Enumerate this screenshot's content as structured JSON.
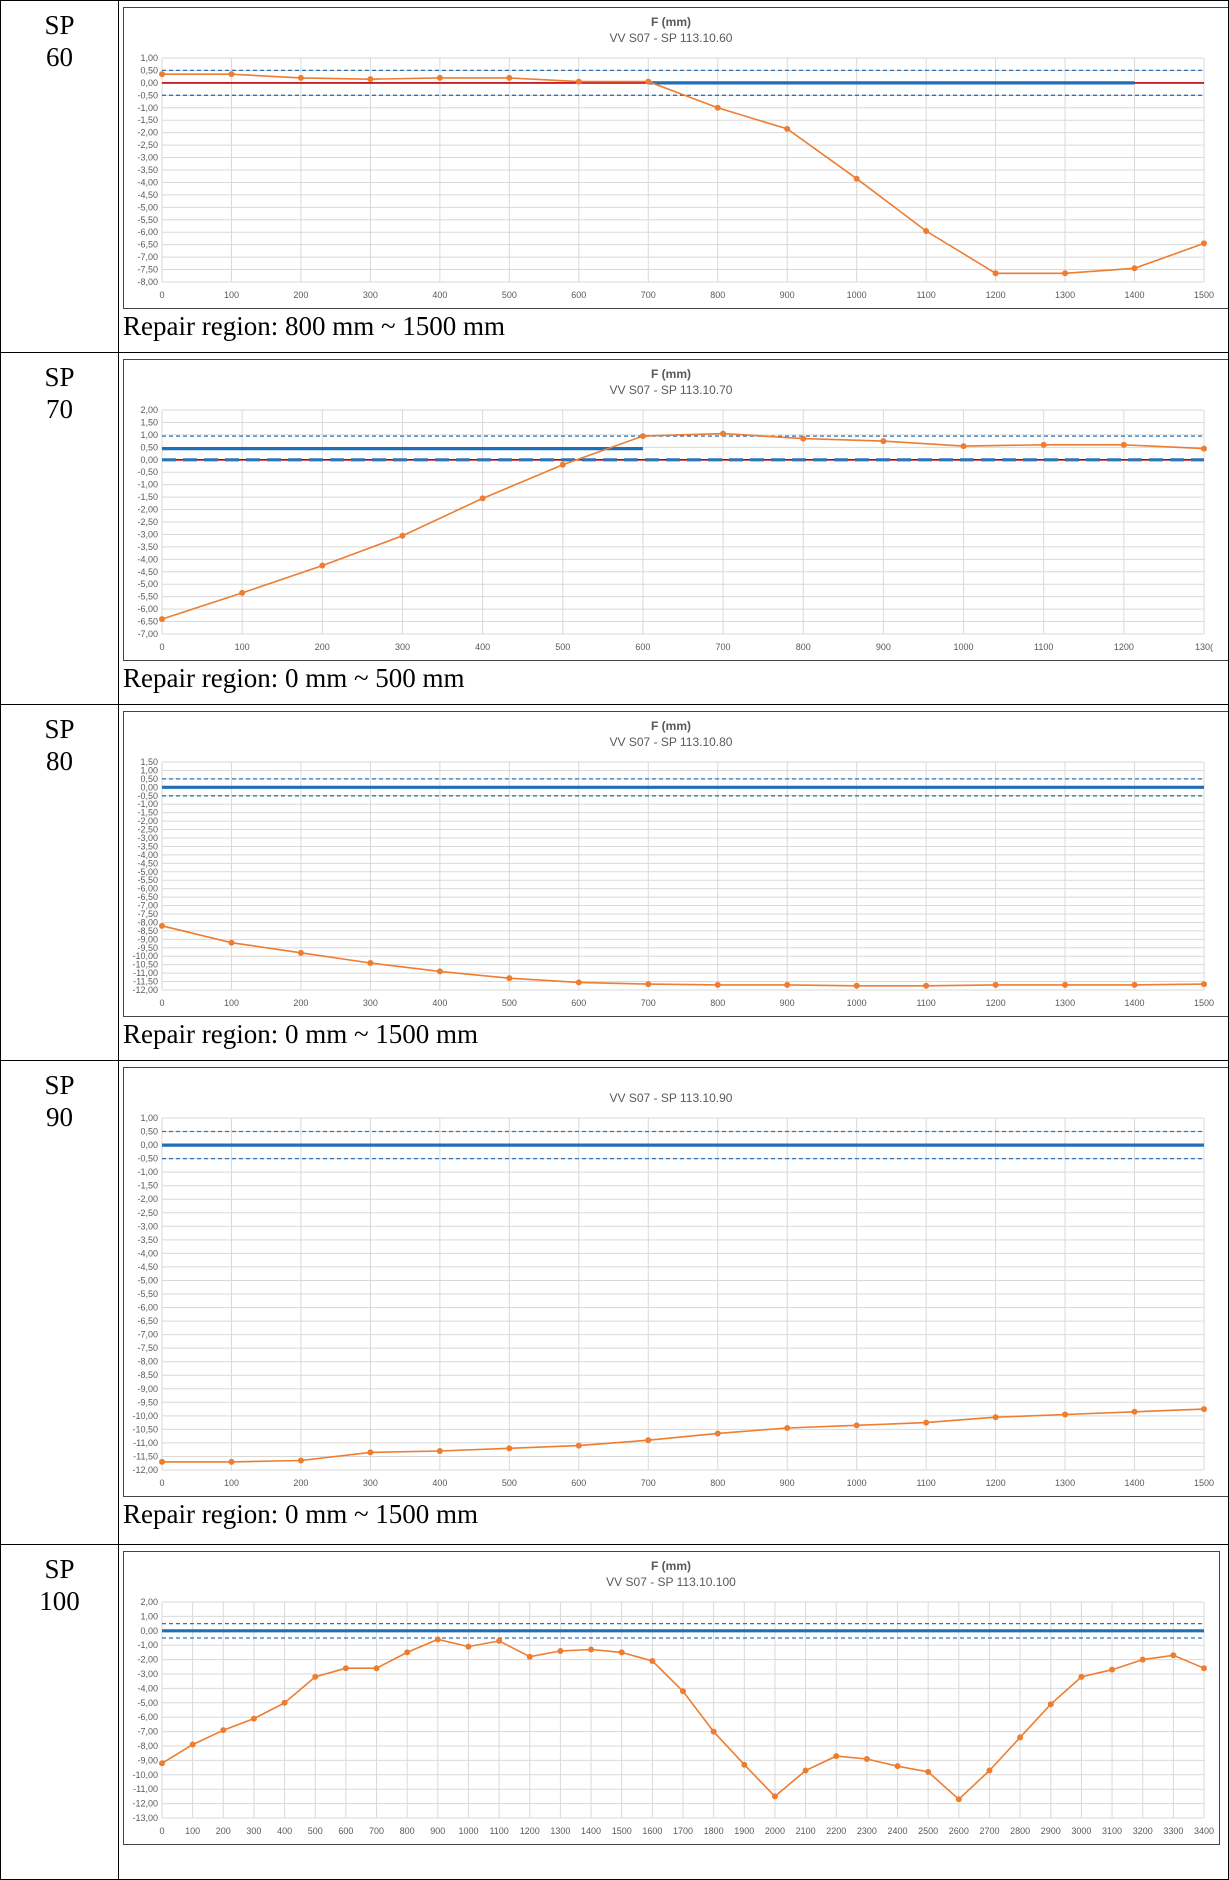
{
  "rows": [
    {
      "label_line1": "SP",
      "label_line2": "60",
      "repair": "Repair region: 800 mm ~ 1500 mm",
      "chart_data": {
        "type": "line",
        "title": "F (mm)",
        "subtitle": "VV S07 - SP 113.10.60",
        "x": [
          0,
          100,
          200,
          300,
          400,
          500,
          600,
          700,
          800,
          900,
          1000,
          1100,
          1200,
          1300,
          1400,
          1500
        ],
        "xticks": [
          "0",
          "100",
          "200",
          "300",
          "400",
          "500",
          "600",
          "700",
          "800",
          "900",
          "1000",
          "1100",
          "1200",
          "1300",
          "1400",
          "1500"
        ],
        "ylim": [
          -8,
          1
        ],
        "ystep": 0.5,
        "series": [
          {
            "values": [
              0.35,
              0.35,
              0.2,
              0.15,
              0.2,
              0.2,
              0.05,
              0.05,
              -1.0,
              -1.85,
              -3.85,
              -5.95,
              -7.65,
              -7.65,
              -7.45,
              -6.45
            ],
            "color": "#ED7D31",
            "style": "marker-line"
          },
          {
            "values": [
              0.5,
              0.5,
              0.5,
              0.5,
              0.5,
              0.5,
              0.5,
              0.5,
              0.5,
              0.5,
              0.5,
              0.5,
              0.5,
              0.5,
              0.5,
              0.5
            ],
            "color": "#2E75B6",
            "style": "dashed"
          },
          {
            "values": [
              -0.5,
              -0.5,
              -0.5,
              -0.5,
              -0.5,
              -0.5,
              -0.5,
              -0.5,
              -0.5,
              -0.5,
              -0.5,
              -0.5,
              -0.5,
              -0.5,
              -0.5,
              -0.5
            ],
            "color": "#2E75B6",
            "style": "dashed"
          },
          {
            "values": [
              0,
              0,
              0,
              0,
              0,
              0,
              0,
              0,
              0,
              0,
              0,
              0,
              0,
              0,
              0,
              0
            ],
            "color": "#C00000",
            "style": "thin"
          },
          {
            "values": [
              null,
              null,
              null,
              null,
              null,
              null,
              null,
              0,
              0,
              0,
              0,
              0,
              0,
              0,
              0,
              null
            ],
            "color": "#1F6FB8",
            "style": "thick"
          }
        ]
      }
    },
    {
      "label_line1": "SP",
      "label_line2": "70",
      "repair": "Repair region: 0 mm ~ 500 mm",
      "chart_data": {
        "type": "line",
        "title": "F (mm)",
        "subtitle": "VV S07 - SP 113.10.70",
        "x": [
          0,
          100,
          200,
          300,
          400,
          500,
          600,
          700,
          800,
          900,
          1000,
          1100,
          1200,
          1300
        ],
        "xticks": [
          "0",
          "100",
          "200",
          "300",
          "400",
          "500",
          "600",
          "700",
          "800",
          "900",
          "1000",
          "1100",
          "1200",
          "130("
        ],
        "ylim": [
          -7,
          2
        ],
        "ystep": 0.5,
        "series": [
          {
            "values": [
              -6.4,
              -5.35,
              -4.25,
              -3.05,
              -1.55,
              -0.2,
              0.95,
              1.05,
              0.85,
              0.75,
              0.55,
              0.6,
              0.6,
              0.45
            ],
            "color": "#ED7D31",
            "style": "marker-line"
          },
          {
            "values": [
              0.95,
              0.95,
              0.95,
              0.95,
              0.95,
              0.95,
              0.95,
              0.95,
              0.95,
              0.95,
              0.95,
              0.95,
              0.95,
              0.95
            ],
            "color": "#2E75B6",
            "style": "dashed"
          },
          {
            "values": [
              0.45,
              0.45,
              0.45,
              0.45,
              0.45,
              0.45,
              0.45,
              null,
              null,
              null,
              null,
              null,
              null,
              null
            ],
            "color": "#1F6FB8",
            "style": "thick"
          },
          {
            "values": [
              0,
              0,
              0,
              0,
              0,
              0,
              0,
              0,
              0,
              0,
              0,
              0,
              0,
              0
            ],
            "color": "#C00000",
            "style": "thin"
          },
          {
            "values": [
              0,
              0,
              0,
              0,
              0,
              0,
              0,
              0,
              0,
              0,
              0,
              0,
              0,
              0
            ],
            "color": "#2E75B6",
            "style": "thick-dashed"
          }
        ]
      }
    },
    {
      "label_line1": "SP",
      "label_line2": "80",
      "repair": "Repair region: 0 mm ~ 1500 mm",
      "chart_data": {
        "type": "line",
        "title": "F (mm)",
        "subtitle": "VV S07 - SP 113.10.80",
        "x": [
          0,
          100,
          200,
          300,
          400,
          500,
          600,
          700,
          800,
          900,
          1000,
          1100,
          1200,
          1300,
          1400,
          1500
        ],
        "xticks": [
          "0",
          "100",
          "200",
          "300",
          "400",
          "500",
          "600",
          "700",
          "800",
          "900",
          "1000",
          "1100",
          "1200",
          "1300",
          "1400",
          "1500"
        ],
        "ylim": [
          -12,
          1.5
        ],
        "ystep": 0.5,
        "series": [
          {
            "values": [
              -8.2,
              -9.2,
              -9.8,
              -10.4,
              -10.9,
              -11.3,
              -11.55,
              -11.65,
              -11.7,
              -11.7,
              -11.75,
              -11.75,
              -11.7,
              -11.7,
              -11.7,
              -11.65
            ],
            "color": "#ED7D31",
            "style": "marker-line"
          },
          {
            "values": [
              0.5,
              0.5,
              0.5,
              0.5,
              0.5,
              0.5,
              0.5,
              0.5,
              0.5,
              0.5,
              0.5,
              0.5,
              0.5,
              0.5,
              0.5,
              0.5
            ],
            "color": "#2E75B6",
            "style": "dashed"
          },
          {
            "values": [
              -0.5,
              -0.5,
              -0.5,
              -0.5,
              -0.5,
              -0.5,
              -0.5,
              -0.5,
              -0.5,
              -0.5,
              -0.5,
              -0.5,
              -0.5,
              -0.5,
              -0.5,
              -0.5
            ],
            "color": "#2E75B6",
            "style": "dashed"
          },
          {
            "values": [
              0,
              0,
              0,
              0,
              0,
              0,
              0,
              0,
              0,
              0,
              0,
              0,
              0,
              0,
              0,
              0
            ],
            "color": "#1F6FB8",
            "style": "thick"
          }
        ]
      }
    },
    {
      "label_line1": "SP",
      "label_line2": "90",
      "repair": "Repair region: 0 mm ~ 1500 mm",
      "chart_data": {
        "type": "line",
        "title": "",
        "subtitle": "VV S07 - SP 113.10.90",
        "x": [
          0,
          100,
          200,
          300,
          400,
          500,
          600,
          700,
          800,
          900,
          1000,
          1100,
          1200,
          1300,
          1400,
          1500
        ],
        "xticks": [
          "0",
          "100",
          "200",
          "300",
          "400",
          "500",
          "600",
          "700",
          "800",
          "900",
          "1000",
          "1100",
          "1200",
          "1300",
          "1400",
          "1500"
        ],
        "ylim": [
          -12,
          1
        ],
        "ystep": 0.5,
        "series": [
          {
            "values": [
              -11.7,
              -11.7,
              -11.65,
              -11.35,
              -11.3,
              -11.2,
              -11.1,
              -10.9,
              -10.65,
              -10.45,
              -10.35,
              -10.25,
              -10.05,
              -9.95,
              -9.85,
              -9.75
            ],
            "color": "#ED7D31",
            "style": "marker-line"
          },
          {
            "values": [
              0.5,
              0.5,
              0.5,
              0.5,
              0.5,
              0.5,
              0.5,
              0.5,
              0.5,
              0.5,
              0.5,
              0.5,
              0.5,
              0.5,
              0.5,
              0.5
            ],
            "color": "#2E75B6",
            "style": "dashed"
          },
          {
            "values": [
              -0.5,
              -0.5,
              -0.5,
              -0.5,
              -0.5,
              -0.5,
              -0.5,
              -0.5,
              -0.5,
              -0.5,
              -0.5,
              -0.5,
              -0.5,
              -0.5,
              -0.5,
              -0.5
            ],
            "color": "#2E75B6",
            "style": "dashed"
          },
          {
            "values": [
              0,
              0,
              0,
              0,
              0,
              0,
              0,
              0,
              0,
              0,
              0,
              0,
              0,
              0,
              0,
              0
            ],
            "color": "#1F6FB8",
            "style": "thick"
          }
        ]
      }
    },
    {
      "label_line1": "SP",
      "label_line2": "100",
      "repair": "",
      "chart_data": {
        "type": "line",
        "title": "F (mm)",
        "subtitle": "VV S07 - SP 113.10.100",
        "x": [
          0,
          100,
          200,
          300,
          400,
          500,
          600,
          700,
          800,
          900,
          1000,
          1100,
          1200,
          1300,
          1400,
          1500,
          1600,
          1700,
          1800,
          1900,
          2000,
          2100,
          2200,
          2300,
          2400,
          2500,
          2600,
          2700,
          2800,
          2900,
          3000,
          3100,
          3200,
          3300,
          3400
        ],
        "xticks": [
          "0",
          "100",
          "200",
          "300",
          "400",
          "500",
          "600",
          "700",
          "800",
          "900",
          "1000",
          "1100",
          "1200",
          "1300",
          "1400",
          "1500",
          "1600",
          "1700",
          "1800",
          "1900",
          "2000",
          "2100",
          "2200",
          "2300",
          "2400",
          "2500",
          "2600",
          "2700",
          "2800",
          "2900",
          "3000",
          "3100",
          "3200",
          "3300",
          "3400"
        ],
        "ylim": [
          -13,
          2
        ],
        "ystep": 1,
        "series": [
          {
            "values": [
              -9.2,
              -7.9,
              -6.9,
              -6.1,
              -5.0,
              -3.2,
              -2.6,
              -2.6,
              -1.5,
              -0.6,
              -1.1,
              -0.7,
              -1.8,
              -1.4,
              -1.3,
              -1.5,
              -2.1,
              -4.2,
              -7.0,
              -9.3,
              -11.5,
              -9.7,
              -8.7,
              -8.9,
              -9.4,
              -9.8,
              -11.7,
              -9.7,
              -7.4,
              -5.1,
              -3.2,
              -2.7,
              -2.0,
              -1.7,
              -2.6
            ],
            "color": "#ED7D31",
            "style": "marker-line"
          },
          {
            "values": [
              0.5,
              0.5,
              0.5,
              0.5,
              0.5,
              0.5,
              0.5,
              0.5,
              0.5,
              0.5,
              0.5,
              0.5,
              0.5,
              0.5,
              0.5,
              0.5,
              0.5,
              0.5,
              0.5,
              0.5,
              0.5,
              0.5,
              0.5,
              0.5,
              0.5,
              0.5,
              0.5,
              0.5,
              0.5,
              0.5,
              0.5,
              0.5,
              0.5,
              0.5,
              0.5
            ],
            "color": "#2E75B6",
            "style": "dashed"
          },
          {
            "values": [
              -0.5,
              -0.5,
              -0.5,
              -0.5,
              -0.5,
              -0.5,
              -0.5,
              -0.5,
              -0.5,
              -0.5,
              -0.5,
              -0.5,
              -0.5,
              -0.5,
              -0.5,
              -0.5,
              -0.5,
              -0.5,
              -0.5,
              -0.5,
              -0.5,
              -0.5,
              -0.5,
              -0.5,
              -0.5,
              -0.5,
              -0.5,
              -0.5,
              -0.5,
              -0.5,
              -0.5,
              -0.5,
              -0.5,
              -0.5,
              -0.5
            ],
            "color": "#2E75B6",
            "style": "dashed"
          },
          {
            "values": [
              0,
              0,
              0,
              0,
              0,
              0,
              0,
              0,
              0,
              0,
              0,
              0,
              0,
              0,
              0,
              0,
              0,
              0,
              0,
              0,
              0,
              0,
              0,
              0,
              0,
              0,
              0,
              0,
              0,
              0,
              0,
              0,
              0,
              0,
              0
            ],
            "color": "#1F6FB8",
            "style": "thick"
          }
        ]
      }
    }
  ]
}
